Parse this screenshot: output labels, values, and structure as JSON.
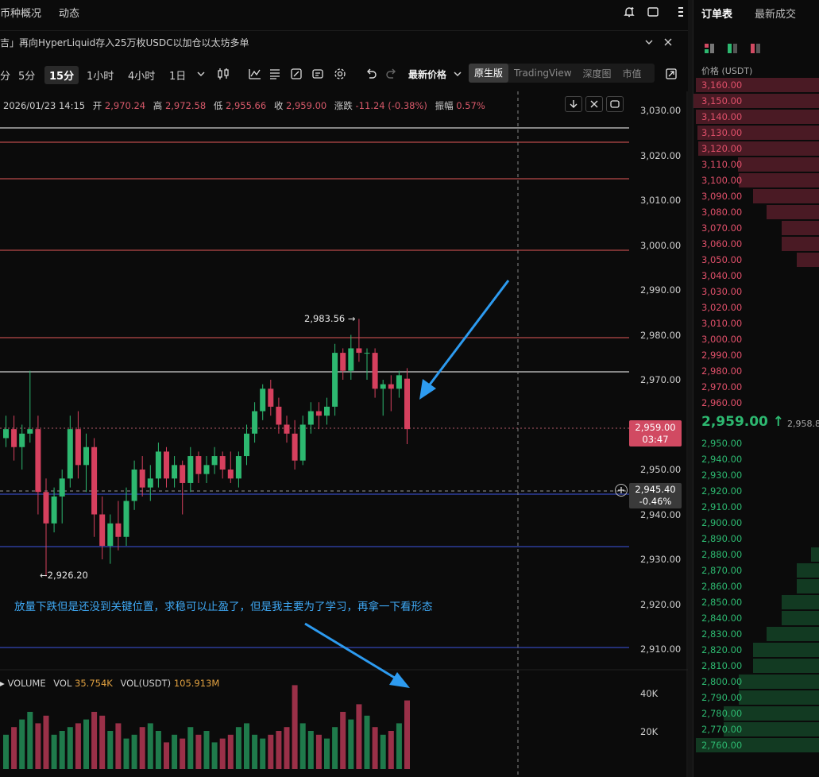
{
  "header": {
    "tabs": [
      "币种概况",
      "动态"
    ],
    "icons": [
      "alert-plus-icon",
      "window-icon",
      "more-icon"
    ]
  },
  "news": {
    "text": "吉」再向HyperLiquid存入25万枚USDC以加仓以太坊多单"
  },
  "toolbar": {
    "timeframes": [
      "分",
      "5分",
      "15分",
      "1小时",
      "4小时",
      "1日"
    ],
    "active_timeframe": "15分",
    "price_type": "最新价格",
    "views": [
      "原生版",
      "TradingView",
      "深度图",
      "市值"
    ],
    "active_view": "原生版"
  },
  "ohlc": {
    "time": "2026/01/23 14:15",
    "open_label": "开",
    "open": "2,970.24",
    "high_label": "高",
    "high": "2,972.58",
    "low_label": "低",
    "low": "2,955.66",
    "close_label": "收",
    "close": "2,959.00",
    "change_label": "涨跌",
    "change": "-11.24 (-0.38%)",
    "amp_label": "振幅",
    "amp": "0.57%"
  },
  "price_axis": {
    "ticks": [
      "3,030.00",
      "3,020.00",
      "3,010.00",
      "3,000.00",
      "2,990.00",
      "2,980.00",
      "2,970.00",
      "2,960.00",
      "2,950.00",
      "2,940.00",
      "2,930.00",
      "2,920.00",
      "2,910.00"
    ],
    "current_price": "2,959.00",
    "countdown": "03:47",
    "crosshair_price": "2,945.40",
    "crosshair_pct": "-0.46%"
  },
  "chart_labels": {
    "high_marker": "2,983.56 →",
    "low_marker": "←2,926.20"
  },
  "annotation": {
    "text": "放量下跌但是还没到关键位置，求稳可以止盈了，但是我主要为了学习，再拿一下看形态"
  },
  "volume": {
    "title": "VOLUME",
    "vol_label": "VOL",
    "vol_value": "35.754K",
    "vol_usdt_label": "VOL(USDT)",
    "vol_usdt_value": "105.913M",
    "ticks": [
      "40K",
      "20K"
    ]
  },
  "orderbook": {
    "tabs": [
      "订单表",
      "最新成交"
    ],
    "active_tab": "订单表",
    "price_header": "价格 (USDT)",
    "asks": [
      {
        "price": "3,160.00",
        "depth": 0.98
      },
      {
        "price": "3,150.00",
        "depth": 1.0
      },
      {
        "price": "3,140.00",
        "depth": 0.98
      },
      {
        "price": "3,130.00",
        "depth": 0.97
      },
      {
        "price": "3,120.00",
        "depth": 0.96
      },
      {
        "price": "3,110.00",
        "depth": 0.65
      },
      {
        "price": "3,100.00",
        "depth": 0.64
      },
      {
        "price": "3,090.00",
        "depth": 0.53
      },
      {
        "price": "3,080.00",
        "depth": 0.42
      },
      {
        "price": "3,070.00",
        "depth": 0.3
      },
      {
        "price": "3,060.00",
        "depth": 0.3
      },
      {
        "price": "3,050.00",
        "depth": 0.18
      },
      {
        "price": "3,040.00",
        "depth": 0
      },
      {
        "price": "3,030.00",
        "depth": 0
      },
      {
        "price": "3,020.00",
        "depth": 0
      },
      {
        "price": "3,010.00",
        "depth": 0
      },
      {
        "price": "3,000.00",
        "depth": 0
      },
      {
        "price": "2,990.00",
        "depth": 0
      },
      {
        "price": "2,980.00",
        "depth": 0
      },
      {
        "price": "2,970.00",
        "depth": 0
      },
      {
        "price": "2,960.00",
        "depth": 0
      }
    ],
    "last_price": "2,959.00 ↑",
    "mark_price": "2,958.8",
    "bids": [
      {
        "price": "2,950.00",
        "depth": 0
      },
      {
        "price": "2,940.00",
        "depth": 0
      },
      {
        "price": "2,930.00",
        "depth": 0
      },
      {
        "price": "2,920.00",
        "depth": 0
      },
      {
        "price": "2,910.00",
        "depth": 0
      },
      {
        "price": "2,900.00",
        "depth": 0
      },
      {
        "price": "2,890.00",
        "depth": 0
      },
      {
        "price": "2,880.00",
        "depth": 0.07
      },
      {
        "price": "2,870.00",
        "depth": 0.18
      },
      {
        "price": "2,860.00",
        "depth": 0.18
      },
      {
        "price": "2,850.00",
        "depth": 0.3
      },
      {
        "price": "2,840.00",
        "depth": 0.3
      },
      {
        "price": "2,830.00",
        "depth": 0.42
      },
      {
        "price": "2,820.00",
        "depth": 0.53
      },
      {
        "price": "2,810.00",
        "depth": 0.53
      },
      {
        "price": "2,800.00",
        "depth": 0.64
      },
      {
        "price": "2,790.00",
        "depth": 0.64
      },
      {
        "price": "2,780.00",
        "depth": 0.76
      },
      {
        "price": "2,770.00",
        "depth": 0.76
      },
      {
        "price": "2,760.00",
        "depth": 0.98
      }
    ]
  },
  "candles": [
    {
      "o": 2957,
      "h": 2962,
      "l": 2955,
      "c": 2959
    },
    {
      "o": 2959,
      "h": 2962,
      "l": 2952,
      "c": 2955
    },
    {
      "o": 2955,
      "h": 2960,
      "l": 2950,
      "c": 2958
    },
    {
      "o": 2958,
      "h": 2972,
      "l": 2956,
      "c": 2959
    },
    {
      "o": 2959,
      "h": 2962,
      "l": 2940,
      "c": 2945
    },
    {
      "o": 2945,
      "h": 2948,
      "l": 2926.2,
      "c": 2938
    },
    {
      "o": 2938,
      "h": 2946,
      "l": 2936,
      "c": 2944
    },
    {
      "o": 2944,
      "h": 2950,
      "l": 2938,
      "c": 2948
    },
    {
      "o": 2948,
      "h": 2962,
      "l": 2946,
      "c": 2959
    },
    {
      "o": 2959,
      "h": 2963,
      "l": 2948,
      "c": 2951
    },
    {
      "o": 2951,
      "h": 2958,
      "l": 2945,
      "c": 2955
    },
    {
      "o": 2955,
      "h": 2957,
      "l": 2935,
      "c": 2940
    },
    {
      "o": 2940,
      "h": 2944,
      "l": 2930,
      "c": 2933
    },
    {
      "o": 2933,
      "h": 2940,
      "l": 2929,
      "c": 2938
    },
    {
      "o": 2938,
      "h": 2943,
      "l": 2932,
      "c": 2935
    },
    {
      "o": 2935,
      "h": 2946,
      "l": 2933,
      "c": 2943
    },
    {
      "o": 2943,
      "h": 2952,
      "l": 2941,
      "c": 2950
    },
    {
      "o": 2950,
      "h": 2953,
      "l": 2944,
      "c": 2946
    },
    {
      "o": 2946,
      "h": 2951,
      "l": 2943,
      "c": 2948
    },
    {
      "o": 2948,
      "h": 2956,
      "l": 2946,
      "c": 2954
    },
    {
      "o": 2954,
      "h": 2955,
      "l": 2946,
      "c": 2948
    },
    {
      "o": 2948,
      "h": 2953,
      "l": 2946,
      "c": 2951
    },
    {
      "o": 2951,
      "h": 2952,
      "l": 2940,
      "c": 2947
    },
    {
      "o": 2947,
      "h": 2955,
      "l": 2945,
      "c": 2953
    },
    {
      "o": 2953,
      "h": 2954,
      "l": 2947,
      "c": 2949
    },
    {
      "o": 2949,
      "h": 2953,
      "l": 2947,
      "c": 2951
    },
    {
      "o": 2951,
      "h": 2955,
      "l": 2949,
      "c": 2953
    },
    {
      "o": 2953,
      "h": 2954,
      "l": 2948,
      "c": 2950
    },
    {
      "o": 2950,
      "h": 2954,
      "l": 2947,
      "c": 2948
    },
    {
      "o": 2948,
      "h": 2954,
      "l": 2946,
      "c": 2953
    },
    {
      "o": 2953,
      "h": 2960,
      "l": 2951,
      "c": 2958
    },
    {
      "o": 2958,
      "h": 2965,
      "l": 2956,
      "c": 2963
    },
    {
      "o": 2963,
      "h": 2969,
      "l": 2961,
      "c": 2968
    },
    {
      "o": 2968,
      "h": 2970,
      "l": 2962,
      "c": 2964
    },
    {
      "o": 2964,
      "h": 2966,
      "l": 2958,
      "c": 2960
    },
    {
      "o": 2960,
      "h": 2962,
      "l": 2956,
      "c": 2958
    },
    {
      "o": 2958,
      "h": 2961,
      "l": 2950,
      "c": 2952
    },
    {
      "o": 2952,
      "h": 2962,
      "l": 2951,
      "c": 2960
    },
    {
      "o": 2960,
      "h": 2965,
      "l": 2958,
      "c": 2963
    },
    {
      "o": 2963,
      "h": 2965,
      "l": 2959,
      "c": 2962
    },
    {
      "o": 2962,
      "h": 2966,
      "l": 2960,
      "c": 2964
    },
    {
      "o": 2964,
      "h": 2978,
      "l": 2962,
      "c": 2976
    },
    {
      "o": 2976,
      "h": 2977,
      "l": 2970,
      "c": 2972
    },
    {
      "o": 2972,
      "h": 2980,
      "l": 2970,
      "c": 2977
    },
    {
      "o": 2977,
      "h": 2983.56,
      "l": 2974,
      "c": 2976
    },
    {
      "o": 2976,
      "h": 2977,
      "l": 2970,
      "c": 2976
    },
    {
      "o": 2976,
      "h": 2977,
      "l": 2966,
      "c": 2968
    },
    {
      "o": 2968,
      "h": 2970,
      "l": 2962,
      "c": 2969
    },
    {
      "o": 2969,
      "h": 2971,
      "l": 2963,
      "c": 2968
    },
    {
      "o": 2968,
      "h": 2972,
      "l": 2966,
      "c": 2971
    },
    {
      "o": 2970.24,
      "h": 2972.58,
      "l": 2955.66,
      "c": 2959
    }
  ],
  "volumes": [
    18,
    22,
    26,
    30,
    24,
    28,
    18,
    20,
    22,
    24,
    26,
    30,
    28,
    20,
    24,
    16,
    18,
    22,
    24,
    20,
    14,
    18,
    16,
    22,
    18,
    20,
    14,
    16,
    18,
    22,
    24,
    18,
    16,
    18,
    20,
    22,
    44,
    24,
    20,
    18,
    16,
    22,
    30,
    26,
    34,
    28,
    22,
    18,
    20,
    24,
    36
  ]
}
